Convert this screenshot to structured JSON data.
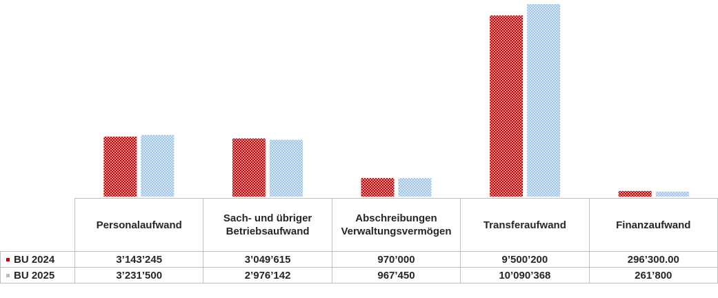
{
  "chart_data": {
    "type": "bar",
    "categories": [
      "Personalaufwand",
      "Sach- und übriger Betriebsaufwand",
      "Abschreibungen Verwaltungsvermögen",
      "Transferaufwand",
      "Finanzaufwand"
    ],
    "series": [
      {
        "name": "BU 2024",
        "color": "#c00000",
        "values": [
          3143245,
          3049615,
          970000,
          9500200,
          296300
        ],
        "value_labels": [
          "3’143’245",
          "3’049’615",
          "970’000",
          "9’500’200",
          "296’300.00"
        ]
      },
      {
        "name": "BU 2025",
        "color": "#9dc3e6",
        "values": [
          3231500,
          2976142,
          967450,
          10090368,
          261800
        ],
        "value_labels": [
          "3’231’500",
          "2’976’142",
          "967’450",
          "10’090’368",
          "261’800"
        ]
      }
    ]
  }
}
